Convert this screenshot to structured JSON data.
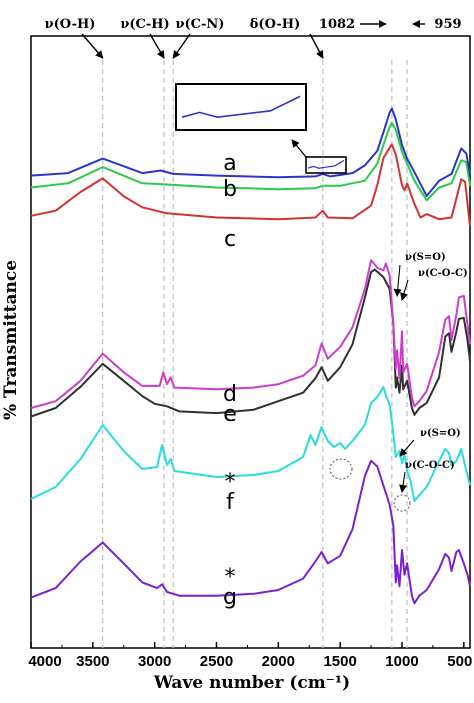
{
  "chart_data": {
    "type": "line",
    "title": "",
    "xlabel": "Wave number (cm⁻¹)",
    "ylabel": "% Transmittance",
    "xlim": [
      4000,
      450
    ],
    "x_reversed": true,
    "x_ticks": [
      4000,
      3500,
      3000,
      2500,
      2000,
      1500,
      1000,
      500
    ],
    "x_tick_labels": [
      "4000",
      "3500",
      "3000",
      "2500",
      "2000",
      "1500",
      "1000",
      "500"
    ],
    "y_units": "arbitrary, curves vertically offset",
    "series": [
      {
        "name": "a",
        "label": "a",
        "color": "#2b35c9",
        "points": [
          [
            4000,
            64
          ],
          [
            3700,
            67
          ],
          [
            3420,
            84
          ],
          [
            3100,
            67
          ],
          [
            2950,
            70
          ],
          [
            2850,
            66
          ],
          [
            2500,
            64
          ],
          [
            2000,
            62
          ],
          [
            1700,
            63
          ],
          [
            1640,
            66
          ],
          [
            1580,
            63
          ],
          [
            1400,
            67
          ],
          [
            1300,
            76
          ],
          [
            1200,
            93
          ],
          [
            1150,
            115
          ],
          [
            1100,
            138
          ],
          [
            1082,
            143
          ],
          [
            1050,
            130
          ],
          [
            1000,
            100
          ],
          [
            959,
            84
          ],
          [
            900,
            68
          ],
          [
            800,
            40
          ],
          [
            700,
            58
          ],
          [
            600,
            66
          ],
          [
            520,
            96
          ],
          [
            480,
            90
          ],
          [
            450,
            66
          ]
        ]
      },
      {
        "name": "b",
        "label": "b",
        "color": "#2cc94e",
        "points": [
          [
            4000,
            50
          ],
          [
            3700,
            55
          ],
          [
            3420,
            74
          ],
          [
            3100,
            55
          ],
          [
            2950,
            54
          ],
          [
            2500,
            50
          ],
          [
            2000,
            48
          ],
          [
            1700,
            49
          ],
          [
            1640,
            52
          ],
          [
            1500,
            52
          ],
          [
            1300,
            58
          ],
          [
            1200,
            78
          ],
          [
            1150,
            100
          ],
          [
            1100,
            121
          ],
          [
            1082,
            126
          ],
          [
            1050,
            118
          ],
          [
            1000,
            92
          ],
          [
            959,
            78
          ],
          [
            900,
            58
          ],
          [
            800,
            35
          ],
          [
            700,
            50
          ],
          [
            600,
            55
          ],
          [
            520,
            82
          ],
          [
            480,
            80
          ],
          [
            450,
            52
          ]
        ]
      },
      {
        "name": "c",
        "label": "c",
        "color": "#d43131",
        "points": [
          [
            4000,
            32
          ],
          [
            3800,
            38
          ],
          [
            3600,
            60
          ],
          [
            3420,
            76
          ],
          [
            3250,
            55
          ],
          [
            3100,
            42
          ],
          [
            2900,
            35
          ],
          [
            2500,
            30
          ],
          [
            2000,
            28
          ],
          [
            1700,
            30
          ],
          [
            1640,
            38
          ],
          [
            1600,
            30
          ],
          [
            1400,
            29
          ],
          [
            1250,
            44
          ],
          [
            1200,
            68
          ],
          [
            1150,
            100
          ],
          [
            1100,
            112
          ],
          [
            1082,
            116
          ],
          [
            1050,
            104
          ],
          [
            1000,
            68
          ],
          [
            980,
            62
          ],
          [
            959,
            70
          ],
          [
            900,
            46
          ],
          [
            850,
            30
          ],
          [
            800,
            34
          ],
          [
            700,
            28
          ],
          [
            600,
            30
          ],
          [
            520,
            75
          ],
          [
            490,
            72
          ],
          [
            450,
            20
          ]
        ]
      },
      {
        "name": "d",
        "label": "d",
        "color": "#cc3dcc",
        "points": [
          [
            4000,
            20
          ],
          [
            3800,
            28
          ],
          [
            3600,
            52
          ],
          [
            3420,
            84
          ],
          [
            3250,
            62
          ],
          [
            3100,
            46
          ],
          [
            2960,
            46
          ],
          [
            2930,
            62
          ],
          [
            2900,
            48
          ],
          [
            2870,
            56
          ],
          [
            2840,
            44
          ],
          [
            2500,
            42
          ],
          [
            2200,
            44
          ],
          [
            2000,
            48
          ],
          [
            1800,
            58
          ],
          [
            1700,
            70
          ],
          [
            1650,
            96
          ],
          [
            1600,
            78
          ],
          [
            1500,
            92
          ],
          [
            1400,
            115
          ],
          [
            1300,
            160
          ],
          [
            1250,
            194
          ],
          [
            1200,
            185
          ],
          [
            1150,
            182
          ],
          [
            1130,
            190
          ],
          [
            1100,
            176
          ],
          [
            1070,
            120
          ],
          [
            1050,
            66
          ],
          [
            1040,
            88
          ],
          [
            1020,
            55
          ],
          [
            1000,
            110
          ],
          [
            990,
            62
          ],
          [
            959,
            72
          ],
          [
            920,
            32
          ],
          [
            900,
            22
          ],
          [
            860,
            28
          ],
          [
            800,
            40
          ],
          [
            700,
            86
          ],
          [
            650,
            124
          ],
          [
            620,
            128
          ],
          [
            600,
            100
          ],
          [
            560,
            130
          ],
          [
            540,
            150
          ],
          [
            500,
            152
          ],
          [
            470,
            118
          ],
          [
            450,
            95
          ]
        ]
      },
      {
        "name": "e",
        "label": "e",
        "color": "#303030",
        "points": [
          [
            4000,
            10
          ],
          [
            3800,
            20
          ],
          [
            3600,
            45
          ],
          [
            3420,
            72
          ],
          [
            3250,
            52
          ],
          [
            3100,
            34
          ],
          [
            3000,
            25
          ],
          [
            2900,
            22
          ],
          [
            2800,
            16
          ],
          [
            2500,
            14
          ],
          [
            2200,
            18
          ],
          [
            2000,
            28
          ],
          [
            1800,
            38
          ],
          [
            1700,
            55
          ],
          [
            1650,
            68
          ],
          [
            1600,
            52
          ],
          [
            1500,
            68
          ],
          [
            1400,
            95
          ],
          [
            1300,
            150
          ],
          [
            1250,
            180
          ],
          [
            1220,
            183
          ],
          [
            1150,
            174
          ],
          [
            1100,
            160
          ],
          [
            1070,
            120
          ],
          [
            1050,
            44
          ],
          [
            1040,
            56
          ],
          [
            1020,
            38
          ],
          [
            1000,
            70
          ],
          [
            990,
            42
          ],
          [
            959,
            52
          ],
          [
            920,
            20
          ],
          [
            900,
            12
          ],
          [
            860,
            20
          ],
          [
            800,
            26
          ],
          [
            700,
            56
          ],
          [
            650,
            104
          ],
          [
            620,
            108
          ],
          [
            600,
            86
          ],
          [
            560,
            110
          ],
          [
            540,
            125
          ],
          [
            500,
            126
          ],
          [
            470,
            100
          ],
          [
            450,
            75
          ]
        ]
      },
      {
        "name": "f",
        "label": "f *",
        "color": "#28dce2",
        "points": [
          [
            4000,
            22
          ],
          [
            3800,
            34
          ],
          [
            3600,
            62
          ],
          [
            3420,
            96
          ],
          [
            3250,
            70
          ],
          [
            3100,
            52
          ],
          [
            2980,
            54
          ],
          [
            2940,
            76
          ],
          [
            2900,
            56
          ],
          [
            2870,
            62
          ],
          [
            2840,
            50
          ],
          [
            2500,
            44
          ],
          [
            2200,
            46
          ],
          [
            2000,
            50
          ],
          [
            1800,
            64
          ],
          [
            1740,
            86
          ],
          [
            1700,
            76
          ],
          [
            1650,
            94
          ],
          [
            1600,
            80
          ],
          [
            1550,
            74
          ],
          [
            1500,
            78
          ],
          [
            1460,
            72
          ],
          [
            1400,
            80
          ],
          [
            1300,
            96
          ],
          [
            1250,
            118
          ],
          [
            1200,
            124
          ],
          [
            1150,
            134
          ],
          [
            1130,
            126
          ],
          [
            1100,
            116
          ],
          [
            1080,
            98
          ],
          [
            1050,
            64
          ],
          [
            1020,
            70
          ],
          [
            1000,
            58
          ],
          [
            980,
            66
          ],
          [
            959,
            50
          ],
          [
            930,
            40
          ],
          [
            900,
            20
          ],
          [
            860,
            26
          ],
          [
            800,
            34
          ],
          [
            700,
            60
          ],
          [
            650,
            72
          ],
          [
            620,
            68
          ],
          [
            600,
            56
          ],
          [
            560,
            60
          ],
          [
            520,
            72
          ],
          [
            480,
            50
          ],
          [
            450,
            36
          ]
        ]
      },
      {
        "name": "g",
        "label": "g *",
        "color": "#7a1fd6",
        "points": [
          [
            4000,
            12
          ],
          [
            3800,
            22
          ],
          [
            3600,
            50
          ],
          [
            3420,
            70
          ],
          [
            3250,
            48
          ],
          [
            3100,
            28
          ],
          [
            2980,
            22
          ],
          [
            2940,
            26
          ],
          [
            2900,
            18
          ],
          [
            2800,
            14
          ],
          [
            2500,
            14
          ],
          [
            2200,
            16
          ],
          [
            2000,
            20
          ],
          [
            1800,
            32
          ],
          [
            1700,
            50
          ],
          [
            1650,
            60
          ],
          [
            1600,
            48
          ],
          [
            1500,
            56
          ],
          [
            1400,
            84
          ],
          [
            1300,
            140
          ],
          [
            1250,
            156
          ],
          [
            1200,
            150
          ],
          [
            1150,
            130
          ],
          [
            1100,
            110
          ],
          [
            1070,
            88
          ],
          [
            1050,
            28
          ],
          [
            1040,
            46
          ],
          [
            1020,
            24
          ],
          [
            1000,
            62
          ],
          [
            980,
            36
          ],
          [
            959,
            48
          ],
          [
            920,
            14
          ],
          [
            900,
            6
          ],
          [
            860,
            14
          ],
          [
            800,
            20
          ],
          [
            700,
            42
          ],
          [
            650,
            58
          ],
          [
            620,
            54
          ],
          [
            600,
            40
          ],
          [
            560,
            60
          ],
          [
            540,
            62
          ],
          [
            500,
            48
          ],
          [
            470,
            36
          ],
          [
            450,
            24
          ]
        ]
      }
    ],
    "annotations": [
      {
        "text": "ν(O-H)",
        "wavenumber": 3420
      },
      {
        "text": "ν(C-H)",
        "wavenumber": 2925
      },
      {
        "text": "ν(C-N)",
        "wavenumber": 2850
      },
      {
        "text": "δ(O-H)",
        "wavenumber": 1640
      },
      {
        "text": "1082",
        "wavenumber": 1082
      },
      {
        "text": "959",
        "wavenumber": 959
      },
      {
        "text": "ν(S=O)",
        "wavenumber": 1040
      },
      {
        "text": "ν(C-O-C)",
        "wavenumber": 1000
      },
      {
        "text": "ν(S=O)",
        "wavenumber": 1000
      },
      {
        "text": "ν(C-O-C)",
        "wavenumber": 980
      }
    ],
    "grid": false,
    "legend": "curve labels placed at right of each curve"
  }
}
